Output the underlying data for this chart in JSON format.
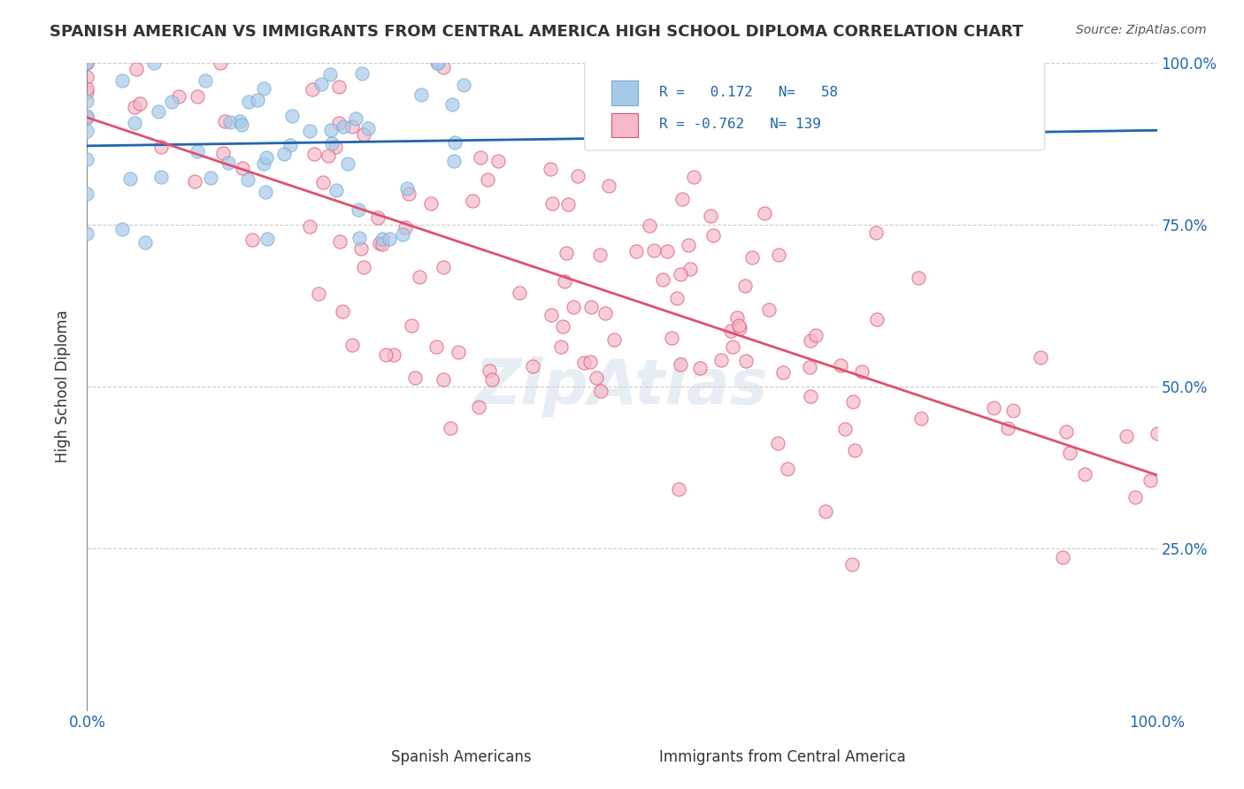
{
  "title": "SPANISH AMERICAN VS IMMIGRANTS FROM CENTRAL AMERICA HIGH SCHOOL DIPLOMA CORRELATION CHART",
  "source": "Source: ZipAtlas.com",
  "ylabel": "High School Diploma",
  "xlabel": "",
  "x_tick_labels": [
    "0.0%",
    "100.0%"
  ],
  "y_tick_labels": [
    "25.0%",
    "50.0%",
    "75.0%",
    "100.0%"
  ],
  "legend_labels": [
    "Spanish Americans",
    "Immigrants from Central America"
  ],
  "legend_r_values": [
    "R =  0.172  N=  58",
    "R = -0.762  N= 139"
  ],
  "blue_color": "#6baed6",
  "pink_color": "#f4a0b0",
  "blue_line_color": "#2166ac",
  "pink_line_color": "#e05070",
  "blue_marker_color": "#a8c8e8",
  "pink_marker_color": "#f4b8c8",
  "background": "#ffffff",
  "watermark": "ZipAtlas",
  "R_blue": 0.172,
  "N_blue": 58,
  "R_pink": -0.762,
  "N_pink": 139,
  "xlim": [
    0,
    1
  ],
  "ylim": [
    0,
    1
  ],
  "seed": 42
}
